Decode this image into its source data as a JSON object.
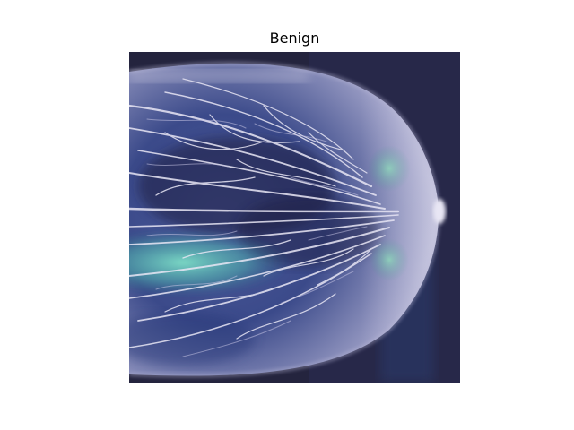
{
  "figure": {
    "title": "Benign",
    "image": {
      "subject": "mammogram-heatmap-overlay",
      "colors": {
        "background": "#25253f",
        "tissue": "#d8d6ea",
        "heatmap_low": "#2b3a74",
        "heatmap_high": "#7fe0c8"
      }
    }
  }
}
